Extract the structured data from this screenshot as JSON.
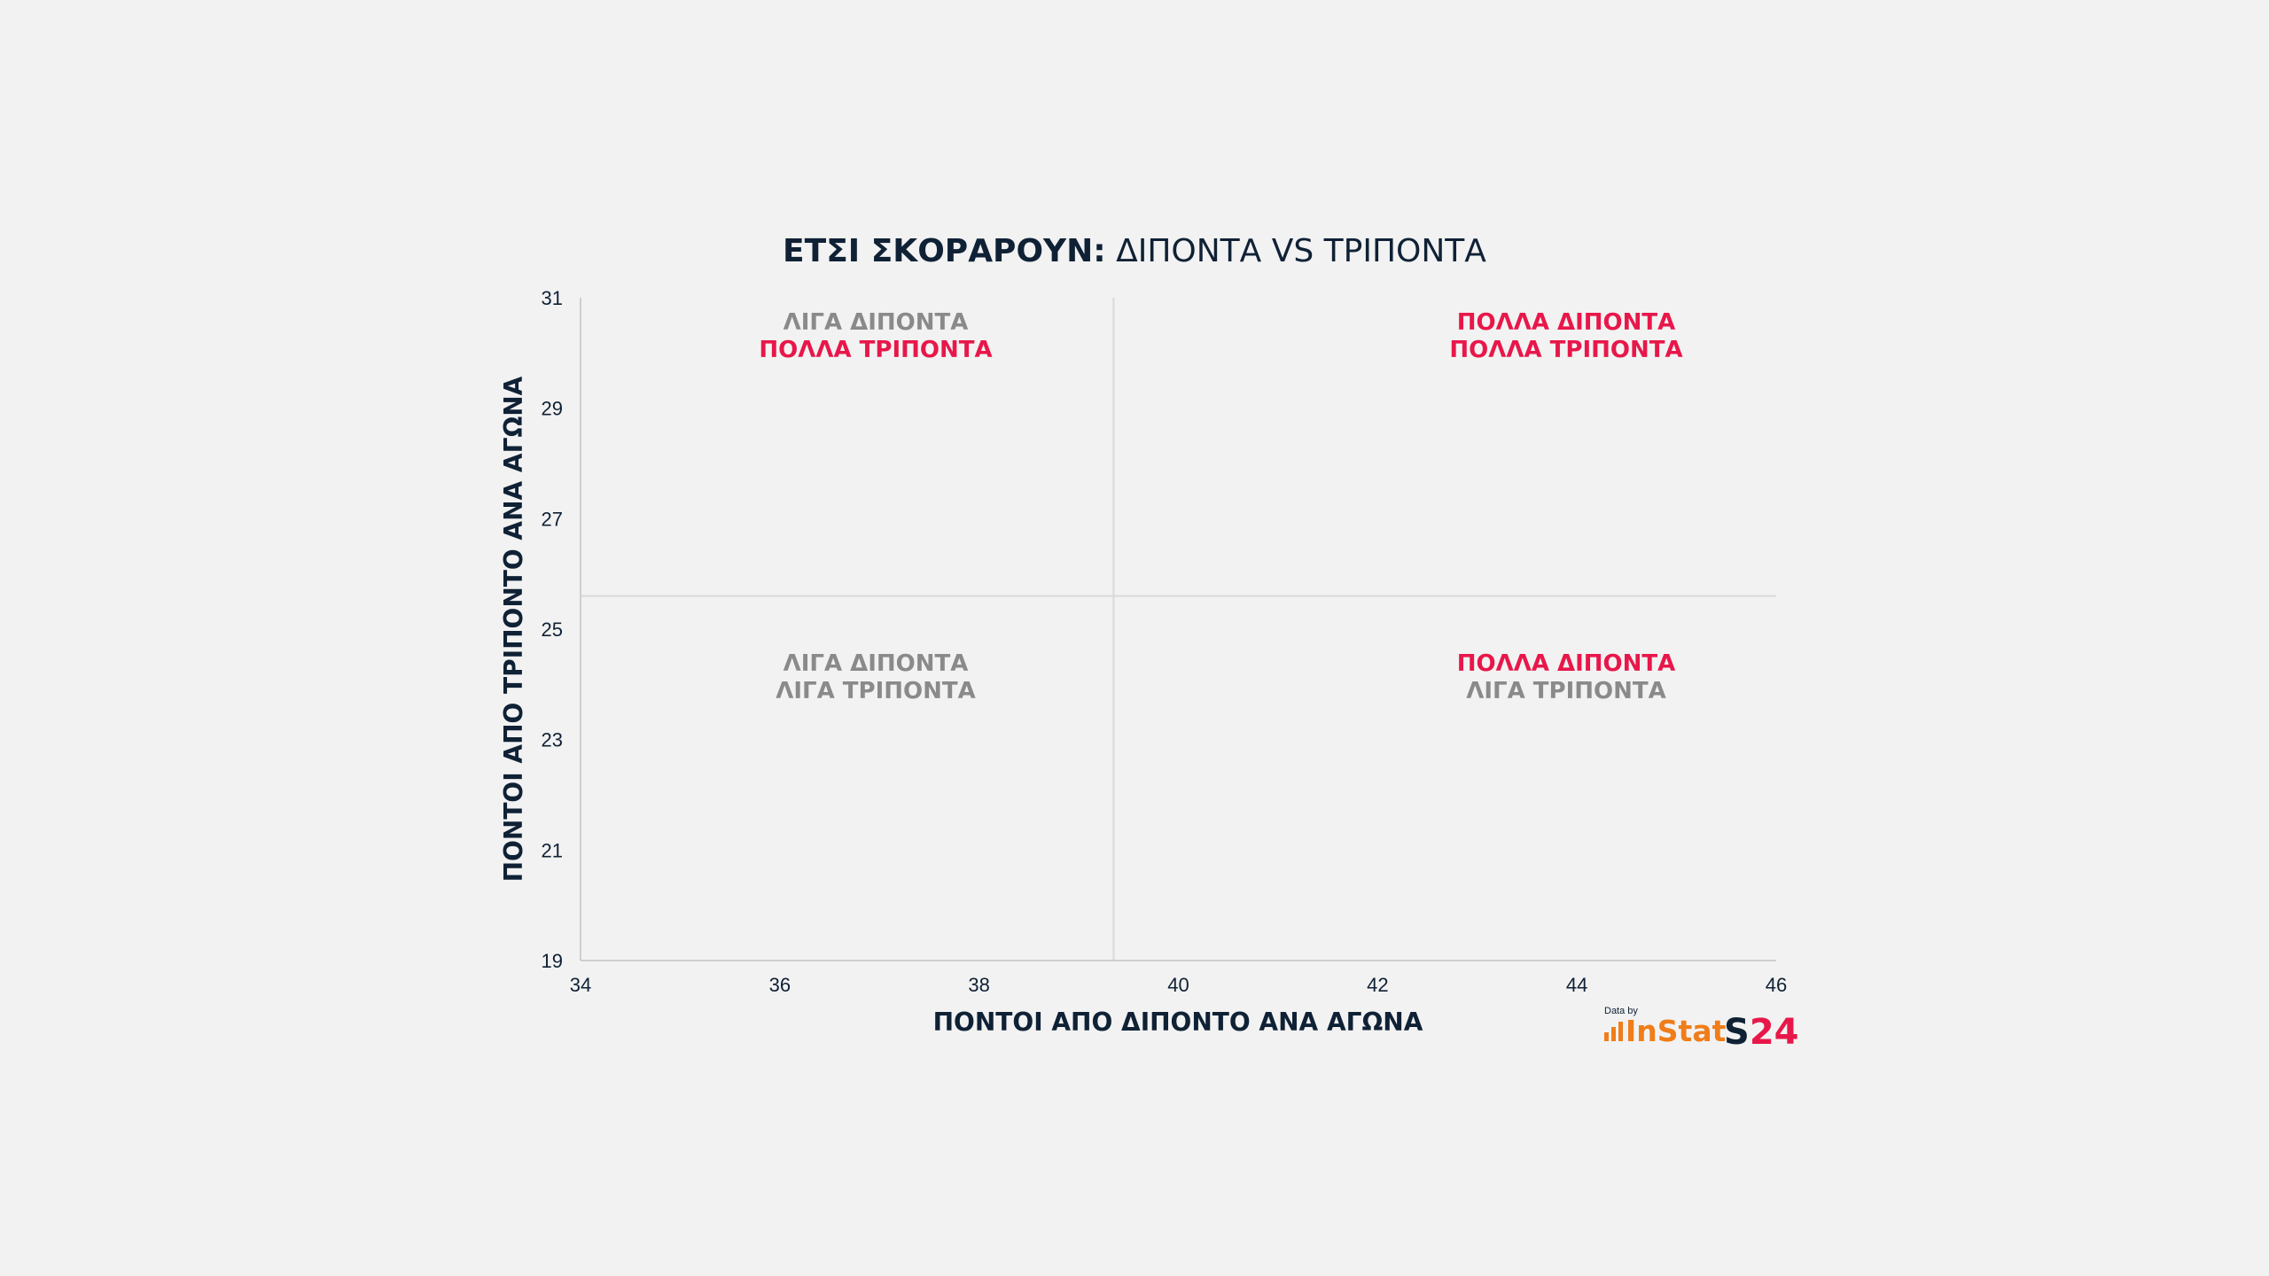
{
  "colors": {
    "background": "#f2f2f2",
    "dark": "#0f2135",
    "grey_text": "#8a8a8a",
    "highlight": "#e8174a",
    "divider": "#d9d9d9",
    "instat_orange": "#f07d1a"
  },
  "chart_data": {
    "type": "scatter",
    "title_bold": "ΕΤΣΙ ΣΚΟΡΑΡΟΥΝ:",
    "title_regular": "ΔΙΠΟΝΤΑ VS ΤΡΙΠΟΝΤΑ",
    "xlabel": "ΠΟΝΤΟΙ ΑΠΟ ΔΙΠΟΝΤΟ ΑΝΑ ΑΓΩΝΑ",
    "ylabel": "ΠΟΝΤΟΙ ΑΠΟ ΤΡΙΠΟΝΤΟ ΑΝΑ ΑΓΩΝΑ",
    "xlim": [
      34,
      46
    ],
    "ylim": [
      19,
      31
    ],
    "xticks": [
      "34",
      "36",
      "38",
      "40",
      "42",
      "44",
      "46"
    ],
    "yticks": [
      "19",
      "21",
      "23",
      "25",
      "27",
      "29",
      "31"
    ],
    "reference_x": 39.35,
    "reference_y": 25.6,
    "grid": false,
    "points": [],
    "quadrants": [
      {
        "position": "top-left",
        "line1": "ΛΙΓΑ ΔΙΠΟΝΤΑ",
        "line1_highlight": false,
        "line2": "ΠΟΛΛΑ ΤΡΙΠΟΝΤΑ",
        "line2_highlight": true
      },
      {
        "position": "top-right",
        "line1": "ΠΟΛΛΑ ΔΙΠΟΝΤΑ",
        "line1_highlight": true,
        "line2": "ΠΟΛΛΑ ΤΡΙΠΟΝΤΑ",
        "line2_highlight": true
      },
      {
        "position": "bottom-left",
        "line1": "ΛΙΓΑ ΔΙΠΟΝΤΑ",
        "line1_highlight": false,
        "line2": "ΛΙΓΑ ΤΡΙΠΟΝΤΑ",
        "line2_highlight": false
      },
      {
        "position": "bottom-right",
        "line1": "ΠΟΛΛΑ ΔΙΠΟΝΤΑ",
        "line1_highlight": true,
        "line2": "ΛΙΓΑ ΤΡΙΠΟΝΤΑ",
        "line2_highlight": false
      }
    ]
  },
  "credits": {
    "data_by": "Data by",
    "instat": "InStat",
    "s24": "S24"
  }
}
